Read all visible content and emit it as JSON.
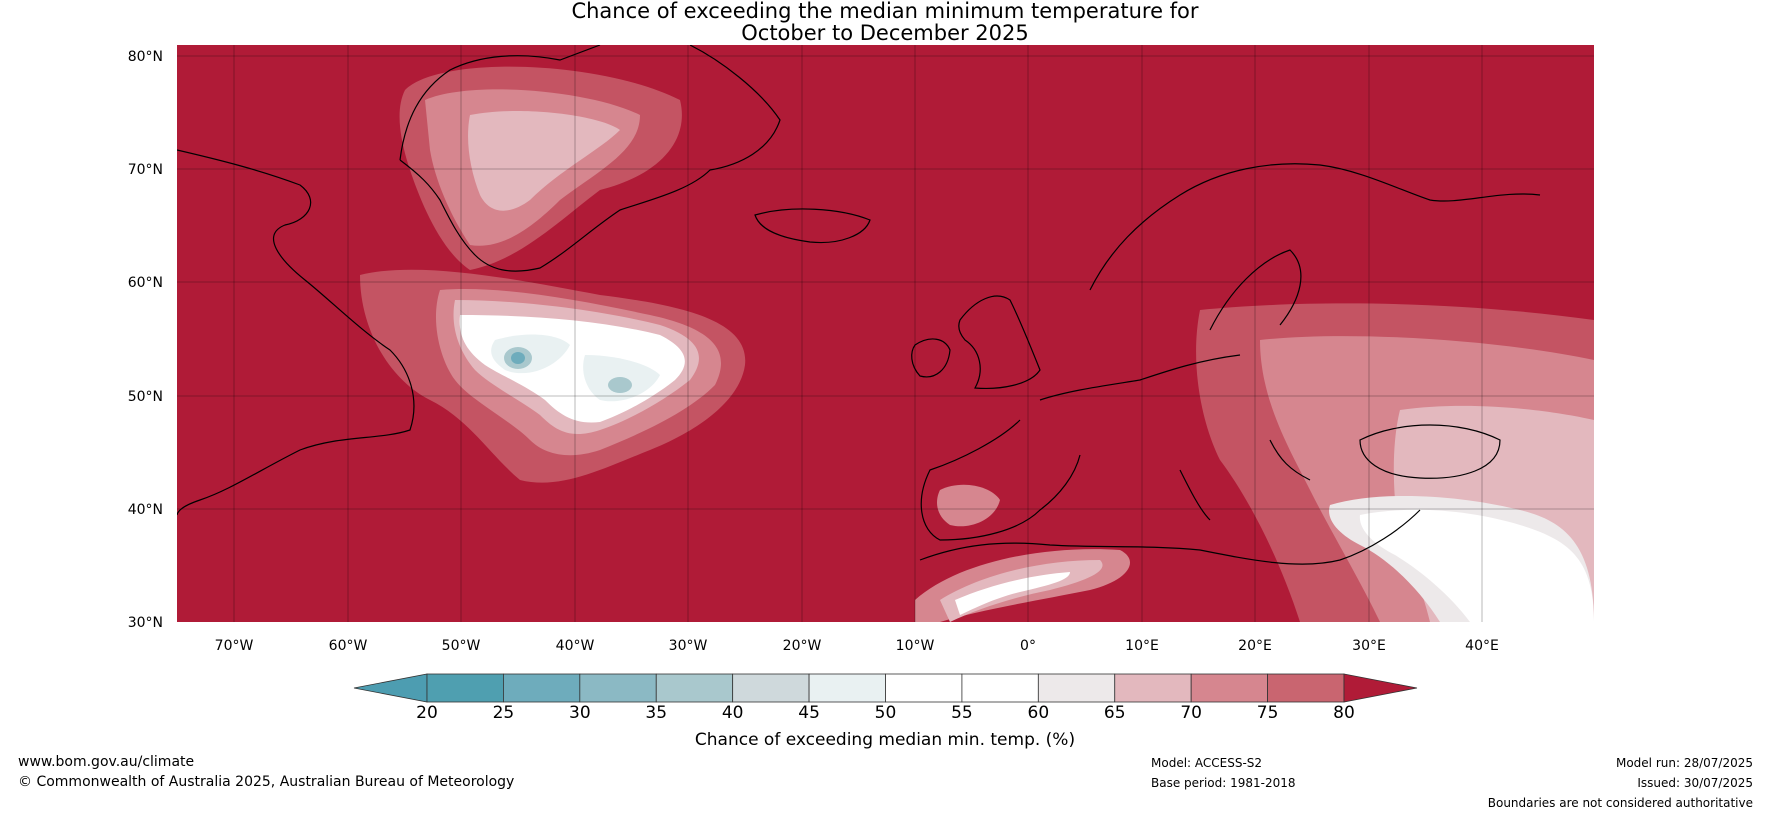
{
  "title": {
    "line1": "Chance of exceeding the median minimum temperature for",
    "line2": "October to December 2025"
  },
  "map": {
    "ocean_color": "#b01b37",
    "lat_labels": [
      "80°N",
      "70°N",
      "60°N",
      "50°N",
      "40°N",
      "30°N"
    ],
    "lon_labels": [
      "70°W",
      "60°W",
      "50°W",
      "40°W",
      "30°W",
      "20°W",
      "10°W",
      "0°",
      "10°E",
      "20°E",
      "30°E",
      "40°E"
    ]
  },
  "colorbar": {
    "ticks": [
      "20",
      "25",
      "30",
      "35",
      "40",
      "45",
      "50",
      "55",
      "60",
      "65",
      "70",
      "75",
      "80"
    ],
    "colors": [
      "#4f9fb0",
      "#6eacbc",
      "#8bb9c4",
      "#a9c8cd",
      "#cfd9dc",
      "#e9f1f2",
      "#ffffff",
      "#ffffff",
      "#ede9ea",
      "#e3b8be",
      "#d6868f",
      "#c96570",
      "#bd3b4d"
    ],
    "under_color": "#4d9db1",
    "over_color": "#b01b37",
    "label": "Chance of exceeding median min. temp. (%)"
  },
  "footer": {
    "website": "www.bom.gov.au/climate",
    "copyright": "© Commonwealth of Australia 2025, Australian Bureau of Meteorology",
    "model": "Model: ACCESS-S2",
    "base_period": "Base period: 1981-2018",
    "model_run": "Model run: 28/07/2025",
    "issued": "Issued: 30/07/2025",
    "disclaimer": "Boundaries are not considered authoritative"
  }
}
